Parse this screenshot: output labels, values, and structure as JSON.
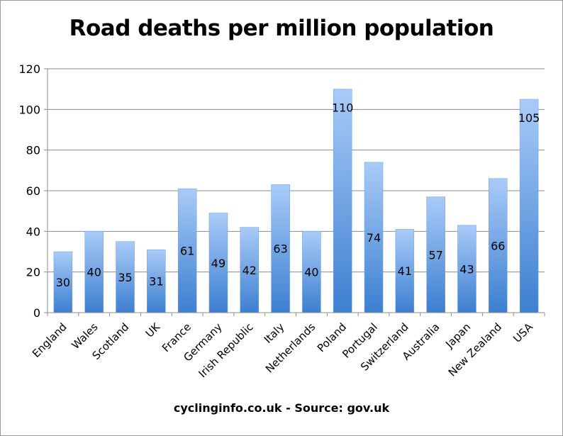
{
  "chart_data": {
    "type": "bar",
    "title": "Road deaths per million population",
    "footer": "cyclinginfo.co.uk - Source: gov.uk",
    "xlabel": "",
    "ylabel": "",
    "categories": [
      "England",
      "Wales",
      "Scotland",
      "UK",
      "France",
      "Germany",
      "Irish Republic",
      "Italy",
      "Netherlands",
      "Poland",
      "Portugal",
      "Switzerland",
      "Australia",
      "Japan",
      "New Zealand",
      "USA"
    ],
    "values": [
      30,
      40,
      35,
      31,
      61,
      49,
      42,
      63,
      40,
      110,
      74,
      41,
      57,
      43,
      66,
      105
    ],
    "data_labels": [
      "30",
      "40",
      "35",
      "31",
      "61",
      "49",
      "42",
      "63",
      "40",
      "110",
      "74",
      "41",
      "57",
      "43",
      "66",
      "105"
    ],
    "ylim": [
      0,
      120
    ],
    "yticks": [
      "0",
      "20",
      "40",
      "60",
      "80",
      "100",
      "120"
    ],
    "grid": true,
    "legend": "none",
    "bar_color_top": "#a9cbf8",
    "bar_color_bottom": "#3c7fd1"
  }
}
